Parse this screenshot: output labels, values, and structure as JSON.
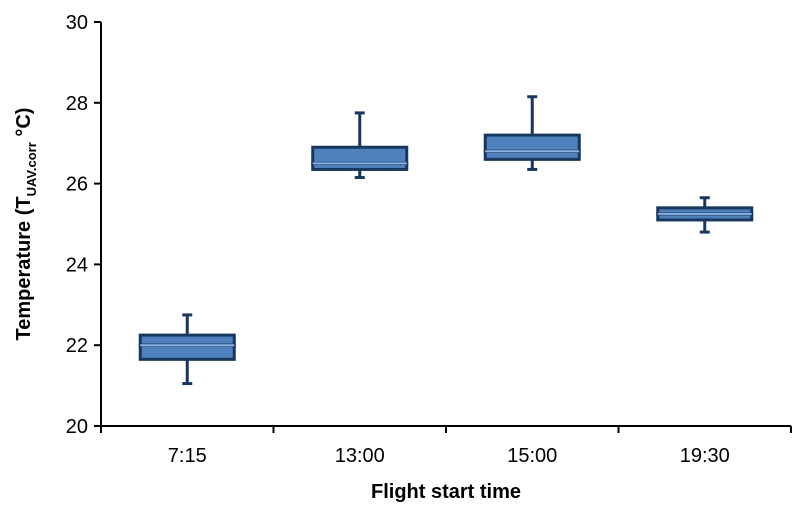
{
  "chart_data": {
    "type": "box",
    "xlabel": "Flight start time",
    "ylabel": {
      "main": "Temperature (T",
      "subscript": "UAV.corr",
      "suffix": " °C)"
    },
    "ylim": [
      20,
      30
    ],
    "yticks": [
      "20",
      "22",
      "24",
      "26",
      "28",
      "30"
    ],
    "grid": false,
    "categories": [
      "7:15",
      "13:00",
      "15:00",
      "19:30"
    ],
    "boxes": [
      {
        "category": "7:15",
        "min": 21.05,
        "q1": 21.65,
        "median": 22.0,
        "q3": 22.25,
        "max": 22.75
      },
      {
        "category": "13:00",
        "min": 26.15,
        "q1": 26.35,
        "median": 26.5,
        "q3": 26.9,
        "max": 27.75
      },
      {
        "category": "15:00",
        "min": 26.35,
        "q1": 26.6,
        "median": 26.8,
        "q3": 27.2,
        "max": 28.15
      },
      {
        "category": "19:30",
        "min": 24.8,
        "q1": 25.1,
        "median": 25.25,
        "q3": 25.4,
        "max": 25.65
      }
    ],
    "colors": {
      "box_fill": "#4f81bd",
      "box_fill_light": "#8db3e2",
      "box_stroke": "#17375e",
      "axis": "#000000"
    }
  }
}
